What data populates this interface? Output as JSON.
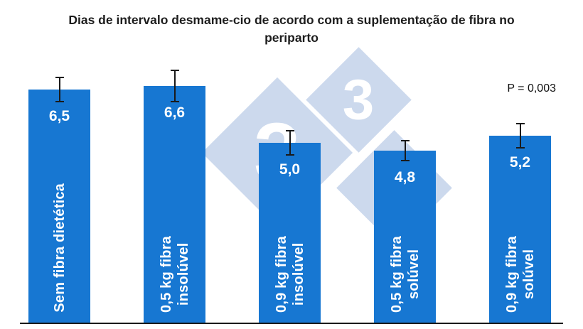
{
  "header": {
    "title": "Dias de intervalo desmame-cio de acordo com a suplementação de fibra no\nperiparto"
  },
  "colors": {
    "bar": "#1777d2",
    "watermark": "#ccd9ed",
    "error_bar": "#1a1a1a",
    "axis": "#1a1a1a",
    "title_text": "#1d1d1d",
    "bar_text": "#ffffff"
  },
  "watermark": {
    "threes": [
      "3",
      "3",
      "3"
    ]
  },
  "chart_data": {
    "type": "bar",
    "title": "Dias de intervalo desmame-cio de acordo com a suplementação de fibra no periparto",
    "categories": [
      "Sem fibra dietética",
      "0,5 kg fibra insolúvel",
      "0,9 kg fibra insolúvel",
      "0,5 kg fibra solúvel",
      "0,9 kg fibra solúvel"
    ],
    "category_lines": [
      [
        "Sem fibra dietética"
      ],
      [
        "0,5 kg fibra",
        "insolúvel"
      ],
      [
        "0,9 kg fibra",
        "insolúvel"
      ],
      [
        "0,5 kg fibra",
        "solúvel"
      ],
      [
        "0,9 kg fibra",
        "solúvel"
      ]
    ],
    "values": [
      6.5,
      6.6,
      5.0,
      4.8,
      5.2
    ],
    "value_labels": [
      "6,5",
      "6,6",
      "5,0",
      "4,8",
      "5,2"
    ],
    "errors": [
      0.35,
      0.45,
      0.35,
      0.3,
      0.35
    ],
    "annotation": "P = 0,003",
    "xlabel": "",
    "ylabel": "",
    "ylim": [
      0,
      7.5
    ],
    "grid": false,
    "legend": "none"
  }
}
